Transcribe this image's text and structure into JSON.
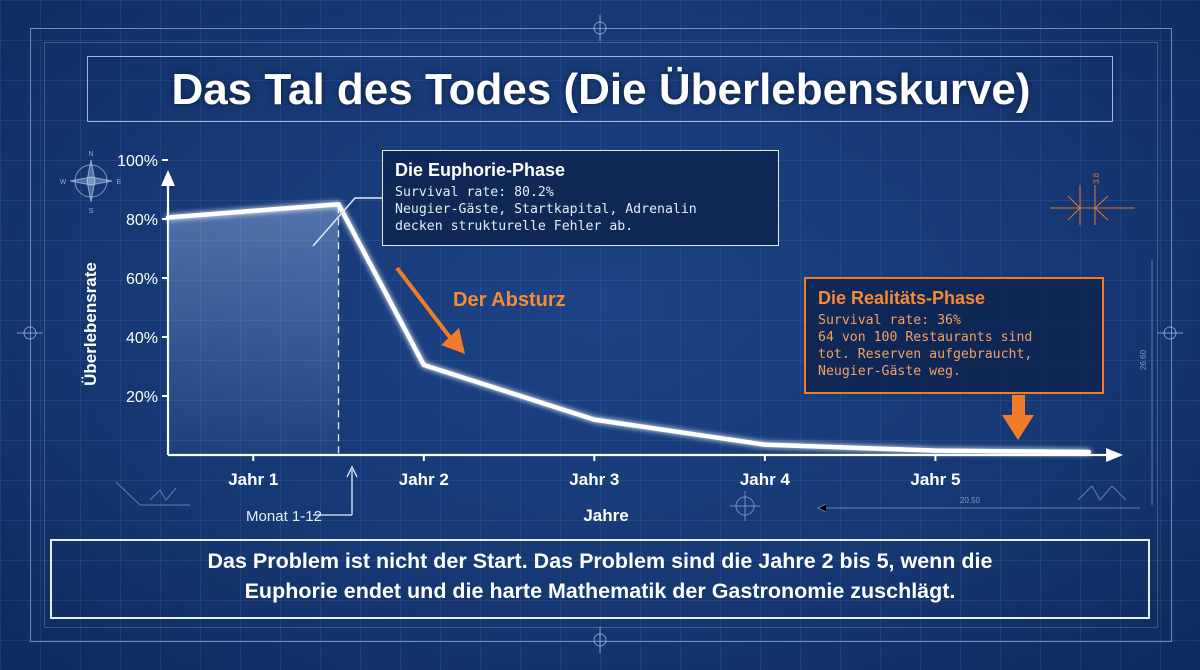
{
  "title": "Das Tal des Todes (Die Überlebenskurve)",
  "chart_data": {
    "type": "line",
    "title": "Das Tal des Todes (Die Überlebenskurve)",
    "xlabel": "Jahre",
    "ylabel": "Überlebensrate",
    "x_sublabel": "Monat 1-12",
    "x_ticks": [
      "Jahr 1",
      "Jahr 2",
      "Jahr 3",
      "Jahr 4",
      "Jahr 5"
    ],
    "y_ticks": [
      "20%",
      "40%",
      "60%",
      "80%",
      "100%"
    ],
    "ylim": [
      0,
      100
    ],
    "xlim": [
      0,
      5.6
    ],
    "grid": true,
    "series": [
      {
        "x": [
          0,
          1,
          1.5,
          2.5,
          3.5,
          4.5,
          5.4
        ],
        "y": [
          80.5,
          85,
          30.5,
          12,
          3.5,
          1.5,
          1
        ]
      }
    ],
    "annotations": [
      {
        "title": "Die Euphorie-Phase",
        "lines": [
          "Survival rate: 80.2%",
          "Neugier-Gäste, Startkapital, Adrenalin",
          "decken strukturelle Fehler ab."
        ]
      },
      {
        "label": "Der Absturz"
      },
      {
        "title": "Die Realitäts-Phase",
        "lines": [
          "Survival rate: 36%",
          "64 von 100 Restaurants sind",
          "tot. Reserven aufgebraucht,",
          "Neugier-Gäste weg."
        ]
      }
    ]
  },
  "compass": [
    "N",
    "S",
    "W",
    "E"
  ],
  "dimensions": {
    "vertical": "3.8",
    "right": "26.60",
    "bottom": "20.50"
  },
  "conclusion": {
    "line1": "Das Problem ist nicht der Start. Das Problem sind die Jahre 2 bis 5, wenn die",
    "line2": "Euphorie endet und die harte Mathematik der Gastronomie zuschlägt."
  },
  "colors": {
    "background": "#163874",
    "accent": "#f58a33",
    "line": "#ffffff"
  }
}
